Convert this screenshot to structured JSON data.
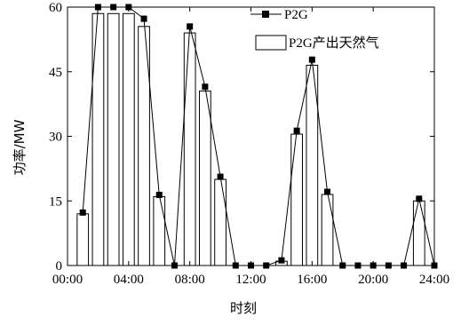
{
  "chart_data": {
    "type": "bar",
    "xlabel": "时刻",
    "ylabel": "功率/MW",
    "xlim": [
      0,
      24
    ],
    "ylim": [
      0,
      60
    ],
    "x_ticks": [
      0,
      4,
      8,
      12,
      16,
      20,
      24
    ],
    "x_tick_labels": [
      "00:00",
      "04:00",
      "08:00",
      "12:00",
      "16:00",
      "20:00",
      "24:00"
    ],
    "y_ticks": [
      0,
      15,
      30,
      45,
      60
    ],
    "y_tick_labels": [
      "0",
      "15",
      "30",
      "45",
      "60"
    ],
    "legend_position": "top-right",
    "x": [
      1,
      2,
      3,
      4,
      5,
      6,
      7,
      8,
      9,
      10,
      11,
      12,
      13,
      14,
      15,
      16,
      17,
      18,
      19,
      20,
      21,
      22,
      23,
      24
    ],
    "series": [
      {
        "name": "P2G",
        "kind": "line",
        "marker": "square",
        "values": [
          12.3,
          60,
          60,
          60,
          57.3,
          16.4,
          0,
          55.5,
          41.5,
          20.6,
          0,
          0,
          0,
          1.2,
          31.3,
          47.8,
          17.1,
          0,
          0,
          0,
          0,
          0,
          15.5,
          0
        ]
      },
      {
        "name": "P2G产出天然气",
        "kind": "bar",
        "values": [
          12,
          58.5,
          58.5,
          58.5,
          55.5,
          16,
          0,
          54,
          40.5,
          20,
          0,
          0,
          0,
          1,
          30.5,
          46.5,
          16.5,
          0,
          0,
          0,
          0,
          0,
          15,
          0
        ]
      }
    ]
  }
}
